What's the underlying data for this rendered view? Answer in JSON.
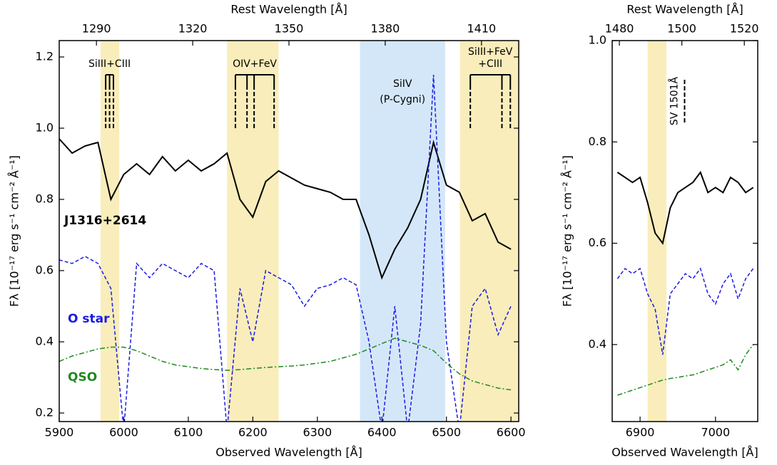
{
  "chart_data": [
    {
      "type": "line",
      "xlabel": "Observed Wavelength [Å]",
      "x2label": "Rest Wavelength [Å]",
      "ylabel": "Fλ [10⁻¹⁷ erg s⁻¹ cm⁻² Å⁻¹]",
      "xlim": [
        5900,
        6612
      ],
      "xticks": [
        5900,
        6000,
        6100,
        6200,
        6300,
        6400,
        6500,
        6600
      ],
      "x2lim": [
        1278.4,
        1421.6
      ],
      "x2ticks": [
        1290,
        1320,
        1350,
        1380,
        1410
      ],
      "ylim": [
        0.176,
        1.246
      ],
      "yticks": [
        0.2,
        0.4,
        0.6,
        0.8,
        {
          "value": 1,
          "label": "1.0"
        },
        1.2
      ],
      "x": [
        5900,
        5920,
        5940,
        5960,
        5980,
        6000,
        6020,
        6040,
        6060,
        6080,
        6100,
        6120,
        6140,
        6160,
        6180,
        6200,
        6220,
        6240,
        6260,
        6280,
        6300,
        6320,
        6340,
        6360,
        6380,
        6400,
        6420,
        6440,
        6460,
        6480,
        6500,
        6520,
        6540,
        6560,
        6580,
        6600
      ],
      "series": [
        {
          "name": "J1316+2614",
          "color": "#000000",
          "dash": "solid",
          "values": [
            0.97,
            0.93,
            0.95,
            0.96,
            0.8,
            0.87,
            0.9,
            0.87,
            0.92,
            0.88,
            0.91,
            0.88,
            0.9,
            0.93,
            0.8,
            0.75,
            0.85,
            0.88,
            0.86,
            0.84,
            0.83,
            0.82,
            0.8,
            0.8,
            0.7,
            0.58,
            0.66,
            0.72,
            0.8,
            0.96,
            0.84,
            0.82,
            0.74,
            0.76,
            0.68,
            0.66
          ]
        },
        {
          "name": "O star",
          "color": "#1a1ae6",
          "dash": "dashed",
          "values": [
            0.63,
            0.62,
            0.64,
            0.62,
            0.55,
            0.15,
            0.62,
            0.58,
            0.62,
            0.6,
            0.58,
            0.62,
            0.6,
            0.15,
            0.55,
            0.4,
            0.6,
            0.58,
            0.56,
            0.5,
            0.55,
            0.56,
            0.58,
            0.56,
            0.4,
            0.15,
            0.5,
            0.15,
            0.45,
            1.15,
            0.4,
            0.15,
            0.5,
            0.55,
            0.42,
            0.5
          ]
        },
        {
          "name": "QSO",
          "color": "#1f8a1f",
          "dash": "dashdot",
          "values": [
            0.345,
            0.36,
            0.37,
            0.38,
            0.385,
            0.385,
            0.375,
            0.36,
            0.345,
            0.335,
            0.33,
            0.325,
            0.322,
            0.32,
            0.322,
            0.325,
            0.328,
            0.33,
            0.332,
            0.335,
            0.34,
            0.345,
            0.355,
            0.365,
            0.38,
            0.395,
            0.41,
            0.4,
            0.39,
            0.375,
            0.34,
            0.31,
            0.29,
            0.28,
            0.27,
            0.265
          ]
        }
      ],
      "shaded": [
        {
          "range": [
            5964,
            5993
          ],
          "color": "#f9edbb"
        },
        {
          "range": [
            6160,
            6240
          ],
          "color": "#f9edbb"
        },
        {
          "range": [
            6366,
            6498
          ],
          "color": "#d4e7f9",
          "label": [
            "SiIV",
            "(P-Cygni)"
          ]
        },
        {
          "range": [
            6521,
            6612
          ],
          "color": "#f9edbb"
        }
      ],
      "line_markers": [
        {
          "label": [
            "SiIII+CIII"
          ],
          "x": [
            5972,
            5978,
            5984
          ]
        },
        {
          "label": [
            "OIV+FeV"
          ],
          "x": [
            6173,
            6191,
            6202,
            6233
          ]
        },
        {
          "label": [
            "SiIII+FeV",
            "+CIII"
          ],
          "x": [
            6537,
            6586,
            6599
          ]
        }
      ]
    },
    {
      "type": "line",
      "xlabel": "Observed Wavelength [Å]",
      "x2label": "Rest Wavelength [Å]",
      "ylabel": "Fλ [10⁻¹⁷ erg s⁻¹ cm⁻² Å⁻¹]",
      "xlim": [
        6863,
        7056
      ],
      "xticks": [
        6900,
        7000
      ],
      "x2lim": [
        1477.7,
        1524.3
      ],
      "x2ticks": [
        1480,
        1500,
        1520
      ],
      "ylim": [
        0.248,
        1.0
      ],
      "yticks": [
        0.4,
        0.6,
        0.8,
        {
          "value": 1,
          "label": "1.0"
        }
      ],
      "x": [
        6870,
        6880,
        6890,
        6900,
        6910,
        6920,
        6930,
        6940,
        6950,
        6960,
        6970,
        6980,
        6990,
        7000,
        7010,
        7020,
        7030,
        7040,
        7050
      ],
      "series": [
        {
          "color": "#000000",
          "dash": "solid",
          "values": [
            0.74,
            0.73,
            0.72,
            0.73,
            0.68,
            0.62,
            0.6,
            0.67,
            0.7,
            0.71,
            0.72,
            0.74,
            0.7,
            0.71,
            0.7,
            0.73,
            0.72,
            0.7,
            0.71
          ]
        },
        {
          "color": "#1a1ae6",
          "dash": "dashed",
          "values": [
            0.53,
            0.55,
            0.54,
            0.55,
            0.5,
            0.47,
            0.38,
            0.5,
            0.52,
            0.54,
            0.53,
            0.55,
            0.5,
            0.48,
            0.52,
            0.54,
            0.49,
            0.53,
            0.55
          ]
        },
        {
          "color": "#1f8a1f",
          "dash": "dashdot",
          "values": [
            0.3,
            0.305,
            0.31,
            0.315,
            0.32,
            0.325,
            0.33,
            0.333,
            0.335,
            0.338,
            0.34,
            0.345,
            0.35,
            0.355,
            0.36,
            0.37,
            0.35,
            0.38,
            0.4
          ]
        }
      ],
      "shaded": [
        {
          "range": [
            6910,
            6935
          ],
          "color": "#f9edbb"
        }
      ],
      "line_markers": [
        {
          "label": [
            "SV 1501Å"
          ],
          "x": [
            6959
          ]
        }
      ]
    }
  ]
}
